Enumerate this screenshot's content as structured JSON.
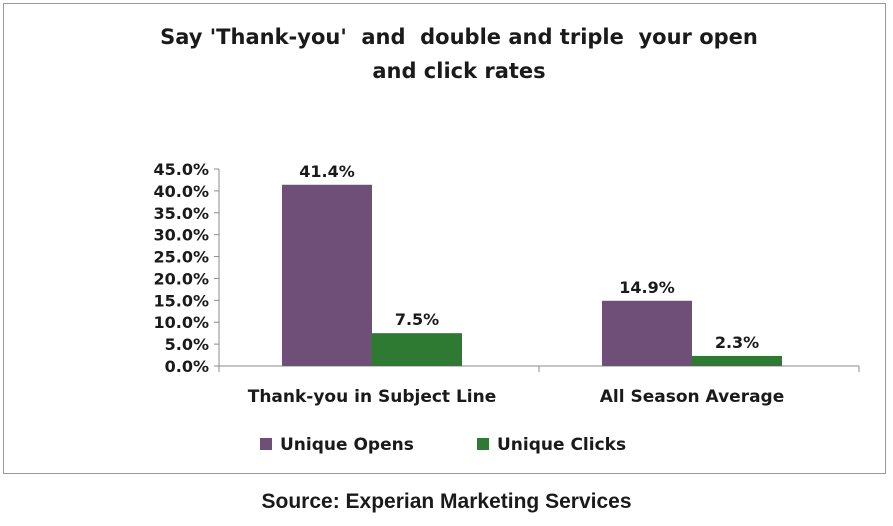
{
  "chart_data": {
    "type": "bar",
    "title_lines": [
      "Say 'Thank-you'  and  double and triple  your open",
      "and click rates"
    ],
    "categories": [
      "Thank-you in Subject Line",
      "All Season Average"
    ],
    "series": [
      {
        "name": "Unique Opens",
        "color": "#6f4f78",
        "values": [
          41.4,
          14.9
        ],
        "labels": [
          "41.4%",
          "14.9%"
        ]
      },
      {
        "name": "Unique Clicks",
        "color": "#2f7a33",
        "values": [
          7.5,
          2.3
        ],
        "labels": [
          "7.5%",
          "2.3%"
        ]
      }
    ],
    "ylim": [
      0,
      45
    ],
    "yticks": [
      {
        "value": 45,
        "label": "45.0%"
      },
      {
        "value": 40,
        "label": "40.0%"
      },
      {
        "value": 35,
        "label": "35.0%"
      },
      {
        "value": 30,
        "label": "30.0%"
      },
      {
        "value": 25,
        "label": "25.0%"
      },
      {
        "value": 20,
        "label": "20.0%"
      },
      {
        "value": 15,
        "label": "15.0%"
      },
      {
        "value": 10,
        "label": "10.0%"
      },
      {
        "value": 5,
        "label": "5.0%"
      },
      {
        "value": 0,
        "label": "0.0%"
      }
    ],
    "grid": false,
    "legend_position": "bottom",
    "xlabel": "",
    "ylabel": ""
  },
  "source": "Source: Experian Marketing Services"
}
